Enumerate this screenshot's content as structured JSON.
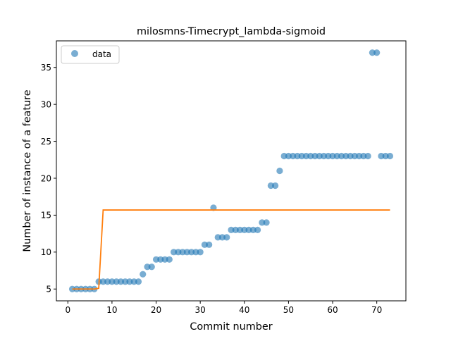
{
  "chart_data": {
    "type": "scatter",
    "title": "milosmns-Timecrypt_lambda-sigmoid",
    "xlabel": "Commit number",
    "ylabel": "Number of instance of a feature",
    "xlim": [
      -2.6,
      76.6
    ],
    "ylim": [
      3.4,
      38.6
    ],
    "xticks": [
      0,
      10,
      20,
      30,
      40,
      50,
      60,
      70
    ],
    "yticks": [
      5,
      10,
      15,
      20,
      25,
      30,
      35
    ],
    "grid": false,
    "legend": {
      "placement": "top-left",
      "entries": [
        "data"
      ]
    },
    "colors": {
      "data": "#1f77b4",
      "fit": "#ff7f0e"
    },
    "series": [
      {
        "name": "data",
        "kind": "scatter",
        "x": [
          1,
          2,
          3,
          4,
          5,
          6,
          7,
          8,
          9,
          10,
          11,
          12,
          13,
          14,
          15,
          16,
          17,
          18,
          19,
          20,
          21,
          22,
          23,
          24,
          25,
          26,
          27,
          28,
          29,
          30,
          31,
          32,
          33,
          34,
          35,
          36,
          37,
          38,
          39,
          40,
          41,
          42,
          43,
          44,
          45,
          46,
          47,
          48,
          49,
          50,
          51,
          52,
          53,
          54,
          55,
          56,
          57,
          58,
          59,
          60,
          61,
          62,
          63,
          64,
          65,
          66,
          67,
          68,
          69,
          70,
          71,
          72,
          73
        ],
        "y": [
          5,
          5,
          5,
          5,
          5,
          5,
          6,
          6,
          6,
          6,
          6,
          6,
          6,
          6,
          6,
          6,
          7,
          8,
          8,
          9,
          9,
          9,
          9,
          10,
          10,
          10,
          10,
          10,
          10,
          10,
          11,
          11,
          16,
          12,
          12,
          12,
          13,
          13,
          13,
          13,
          13,
          13,
          13,
          14,
          14,
          19,
          19,
          21,
          23,
          23,
          23,
          23,
          23,
          23,
          23,
          23,
          23,
          23,
          23,
          23,
          23,
          23,
          23,
          23,
          23,
          23,
          23,
          23,
          37,
          37,
          23,
          23,
          23
        ]
      },
      {
        "kind": "line",
        "x": [
          1,
          2,
          3,
          4,
          5,
          6,
          7,
          8,
          9,
          10,
          20,
          30,
          40,
          50,
          60,
          70,
          73
        ],
        "y": [
          5,
          5,
          5,
          5,
          5,
          5,
          5.1,
          15.7,
          15.7,
          15.7,
          15.7,
          15.7,
          15.7,
          15.7,
          15.7,
          15.7,
          15.7
        ]
      }
    ]
  }
}
